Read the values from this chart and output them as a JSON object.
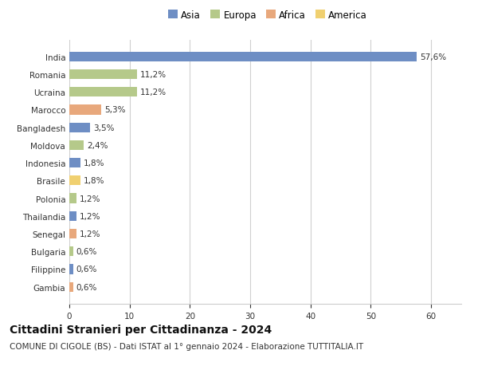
{
  "categories": [
    "India",
    "Romania",
    "Ucraina",
    "Marocco",
    "Bangladesh",
    "Moldova",
    "Indonesia",
    "Brasile",
    "Polonia",
    "Thailandia",
    "Senegal",
    "Bulgaria",
    "Filippine",
    "Gambia"
  ],
  "values": [
    57.6,
    11.2,
    11.2,
    5.3,
    3.5,
    2.4,
    1.8,
    1.8,
    1.2,
    1.2,
    1.2,
    0.6,
    0.6,
    0.6
  ],
  "labels": [
    "57,6%",
    "11,2%",
    "11,2%",
    "5,3%",
    "3,5%",
    "2,4%",
    "1,8%",
    "1,8%",
    "1,2%",
    "1,2%",
    "1,2%",
    "0,6%",
    "0,6%",
    "0,6%"
  ],
  "colors": [
    "#6e8ec4",
    "#b5c98a",
    "#b5c98a",
    "#e8a87c",
    "#6e8ec4",
    "#b5c98a",
    "#6e8ec4",
    "#f0d070",
    "#b5c98a",
    "#6e8ec4",
    "#e8a87c",
    "#b5c98a",
    "#6e8ec4",
    "#e8a87c"
  ],
  "legend_labels": [
    "Asia",
    "Europa",
    "Africa",
    "America"
  ],
  "legend_colors": [
    "#6e8ec4",
    "#b5c98a",
    "#e8a87c",
    "#f0d070"
  ],
  "title": "Cittadini Stranieri per Cittadinanza - 2024",
  "subtitle": "COMUNE DI CIGOLE (BS) - Dati ISTAT al 1° gennaio 2024 - Elaborazione TUTTITALIA.IT",
  "xlim": [
    0,
    65
  ],
  "xticks": [
    0,
    10,
    20,
    30,
    40,
    50,
    60
  ],
  "background_color": "#ffffff",
  "grid_color": "#d0d0d0",
  "bar_height": 0.55,
  "title_fontsize": 10,
  "subtitle_fontsize": 7.5,
  "label_fontsize": 7.5,
  "tick_fontsize": 7.5,
  "legend_fontsize": 8.5
}
